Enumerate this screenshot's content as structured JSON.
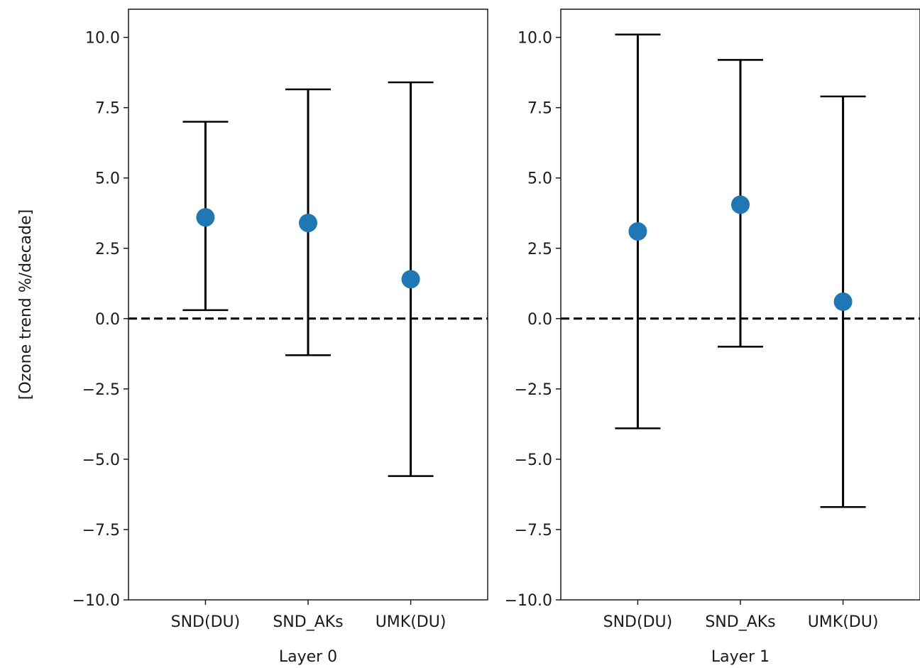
{
  "chart_data": [
    {
      "type": "scatter",
      "subplot": "left",
      "categories": [
        "SND(DU)",
        "SND_AKs",
        "UMK(DU)"
      ],
      "values": [
        3.6,
        3.4,
        1.4
      ],
      "error_low": [
        0.3,
        -1.3,
        -5.6
      ],
      "error_high": [
        7.0,
        8.15,
        8.4
      ],
      "xlabel": "Layer 0",
      "ylabel": "[Ozone trend %/decade]",
      "ylim": [
        -10,
        11
      ],
      "yticks": [
        "10.0",
        "7.5",
        "5.0",
        "2.5",
        "0.0",
        "−2.5",
        "−5.0",
        "−7.5",
        "−10.0"
      ],
      "reference_line": 0,
      "marker_color": "#1f77b4",
      "errorbar_color": "#000000"
    },
    {
      "type": "scatter",
      "subplot": "right",
      "categories": [
        "SND(DU)",
        "SND_AKs",
        "UMK(DU)"
      ],
      "values": [
        3.1,
        4.05,
        0.6
      ],
      "error_low": [
        -3.9,
        -1.0,
        -6.7
      ],
      "error_high": [
        10.1,
        9.2,
        7.9
      ],
      "xlabel": "Layer 1",
      "ylabel": "",
      "ylim": [
        -10,
        11
      ],
      "yticks": [
        "10.0",
        "7.5",
        "5.0",
        "2.5",
        "0.0",
        "−2.5",
        "−5.0",
        "−7.5",
        "−10.0"
      ],
      "reference_line": 0,
      "marker_color": "#1f77b4",
      "errorbar_color": "#000000"
    }
  ]
}
